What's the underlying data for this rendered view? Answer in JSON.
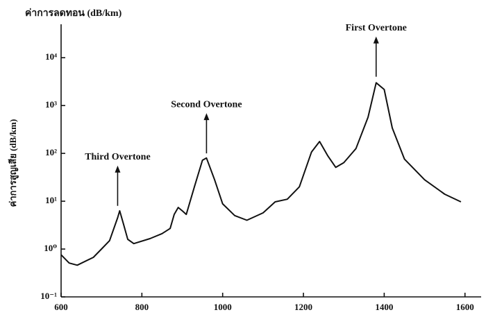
{
  "chart_data": {
    "type": "line",
    "title": "ค่าการลดทอน (dB/km)",
    "y_label": "ค่าการสูญเสีย (dB/km)",
    "x": [
      600,
      620,
      640,
      680,
      700,
      720,
      740,
      745,
      755,
      765,
      780,
      820,
      850,
      870,
      880,
      890,
      900,
      910,
      930,
      950,
      960,
      980,
      1000,
      1030,
      1060,
      1100,
      1130,
      1160,
      1190,
      1220,
      1240,
      1260,
      1280,
      1300,
      1330,
      1360,
      1380,
      1400,
      1420,
      1450,
      1500,
      1550,
      1590
    ],
    "series": [
      {
        "name": null,
        "color": "#111111",
        "values": [
          0.76,
          0.51,
          0.46,
          0.67,
          1.0,
          1.5,
          4.5,
          6.3,
          3.2,
          1.6,
          1.3,
          1.65,
          2.1,
          2.7,
          5.3,
          7.4,
          6.3,
          5.3,
          20,
          72,
          80,
          28,
          8.8,
          5,
          4,
          5.7,
          9.7,
          11,
          20,
          107,
          177,
          90,
          51,
          64,
          126,
          570,
          3000,
          2170,
          340,
          76,
          28,
          14,
          9.7
        ]
      }
    ],
    "xlim": [
      600,
      1640
    ],
    "xticks": [
      600,
      800,
      1000,
      1200,
      1400,
      1600
    ],
    "ylim": [
      0.1,
      50000
    ],
    "yticks": [
      {
        "value": 0.1,
        "label": "10⁻¹"
      },
      {
        "value": 1,
        "label": "10⁰"
      },
      {
        "value": 10,
        "label": "10¹"
      },
      {
        "value": 100,
        "label": "10²"
      },
      {
        "value": 1000,
        "label": "10³"
      },
      {
        "value": 10000,
        "label": "10⁴"
      }
    ],
    "log_y": true,
    "grid": false,
    "annotations": [
      {
        "text": "Third Overtone",
        "x": 740,
        "y": 8
      },
      {
        "text": "Second Overtone",
        "x": 960,
        "y": 100
      },
      {
        "text": "First Overtone",
        "x": 1380,
        "y": 4000
      }
    ]
  }
}
